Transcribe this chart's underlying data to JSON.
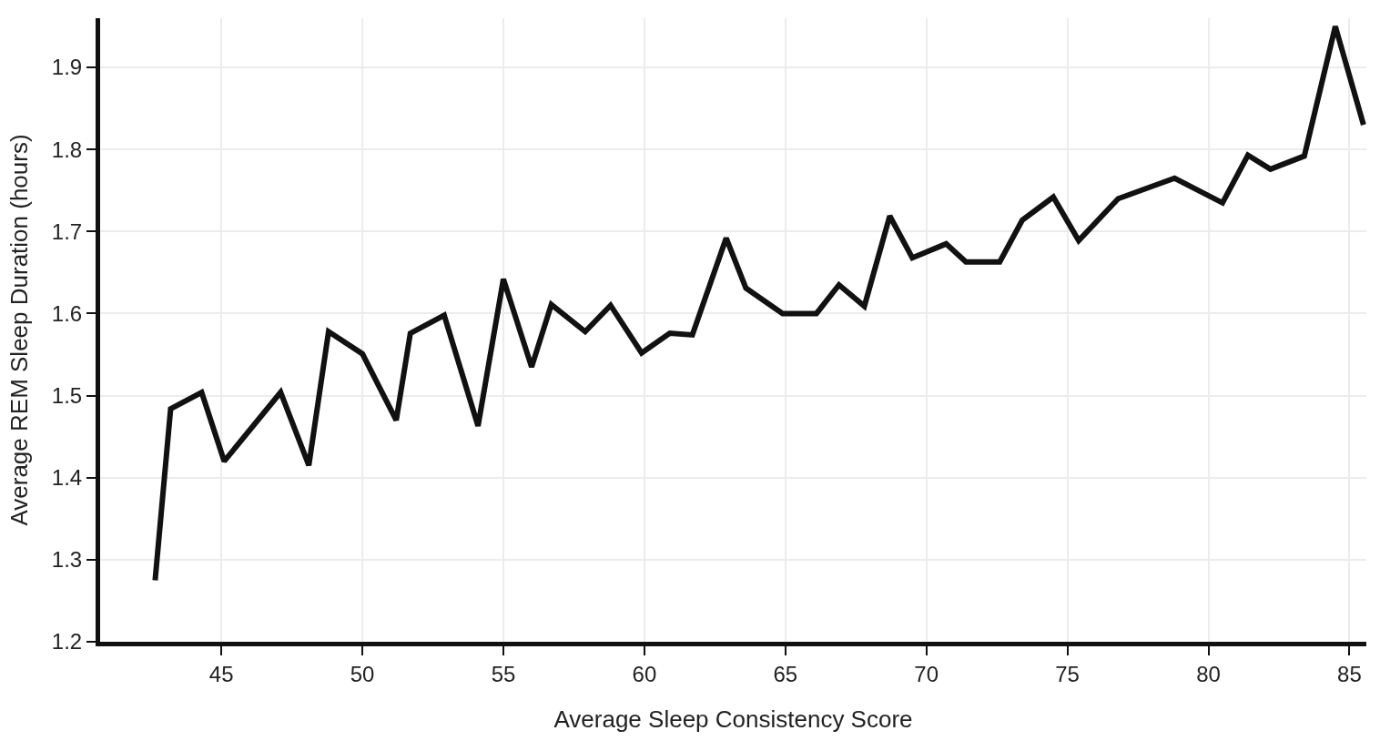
{
  "chart_data": {
    "type": "line",
    "xlabel": "Average Sleep Consistency Score",
    "ylabel": "Average REM Sleep Duration (hours)",
    "x": [
      42.65,
      43.2,
      44.3,
      45.1,
      47.1,
      48.1,
      48.8,
      50.0,
      51.2,
      51.7,
      52.9,
      54.1,
      55.0,
      56.0,
      56.7,
      57.9,
      58.8,
      59.9,
      60.9,
      61.7,
      62.9,
      63.6,
      64.9,
      66.1,
      66.9,
      67.8,
      68.7,
      69.5,
      70.7,
      71.4,
      72.6,
      73.4,
      74.5,
      75.4,
      76.8,
      78.8,
      80.5,
      81.4,
      82.2,
      83.4,
      84.5,
      85.5
    ],
    "series": [
      {
        "color": "#111111",
        "values": [
          1.275,
          1.484,
          1.504,
          1.42,
          1.504,
          1.415,
          1.578,
          1.551,
          1.47,
          1.576,
          1.598,
          1.463,
          1.642,
          1.535,
          1.611,
          1.578,
          1.61,
          1.552,
          1.576,
          1.574,
          1.692,
          1.631,
          1.6,
          1.6,
          1.635,
          1.609,
          1.719,
          1.668,
          1.685,
          1.663,
          1.663,
          1.714,
          1.742,
          1.689,
          1.74,
          1.765,
          1.735,
          1.793,
          1.776,
          1.792,
          1.95,
          1.83
        ]
      }
    ],
    "xlim": [
      40.7,
      85.6
    ],
    "xticks": [
      45,
      50,
      55,
      60,
      65,
      70,
      75,
      80,
      85
    ],
    "ylim": [
      1.2,
      1.96
    ],
    "yticks": [
      1.2,
      1.3,
      1.4,
      1.5,
      1.6,
      1.7,
      1.8,
      1.9
    ],
    "grid": true,
    "marker": "none",
    "line_style": "solid"
  }
}
